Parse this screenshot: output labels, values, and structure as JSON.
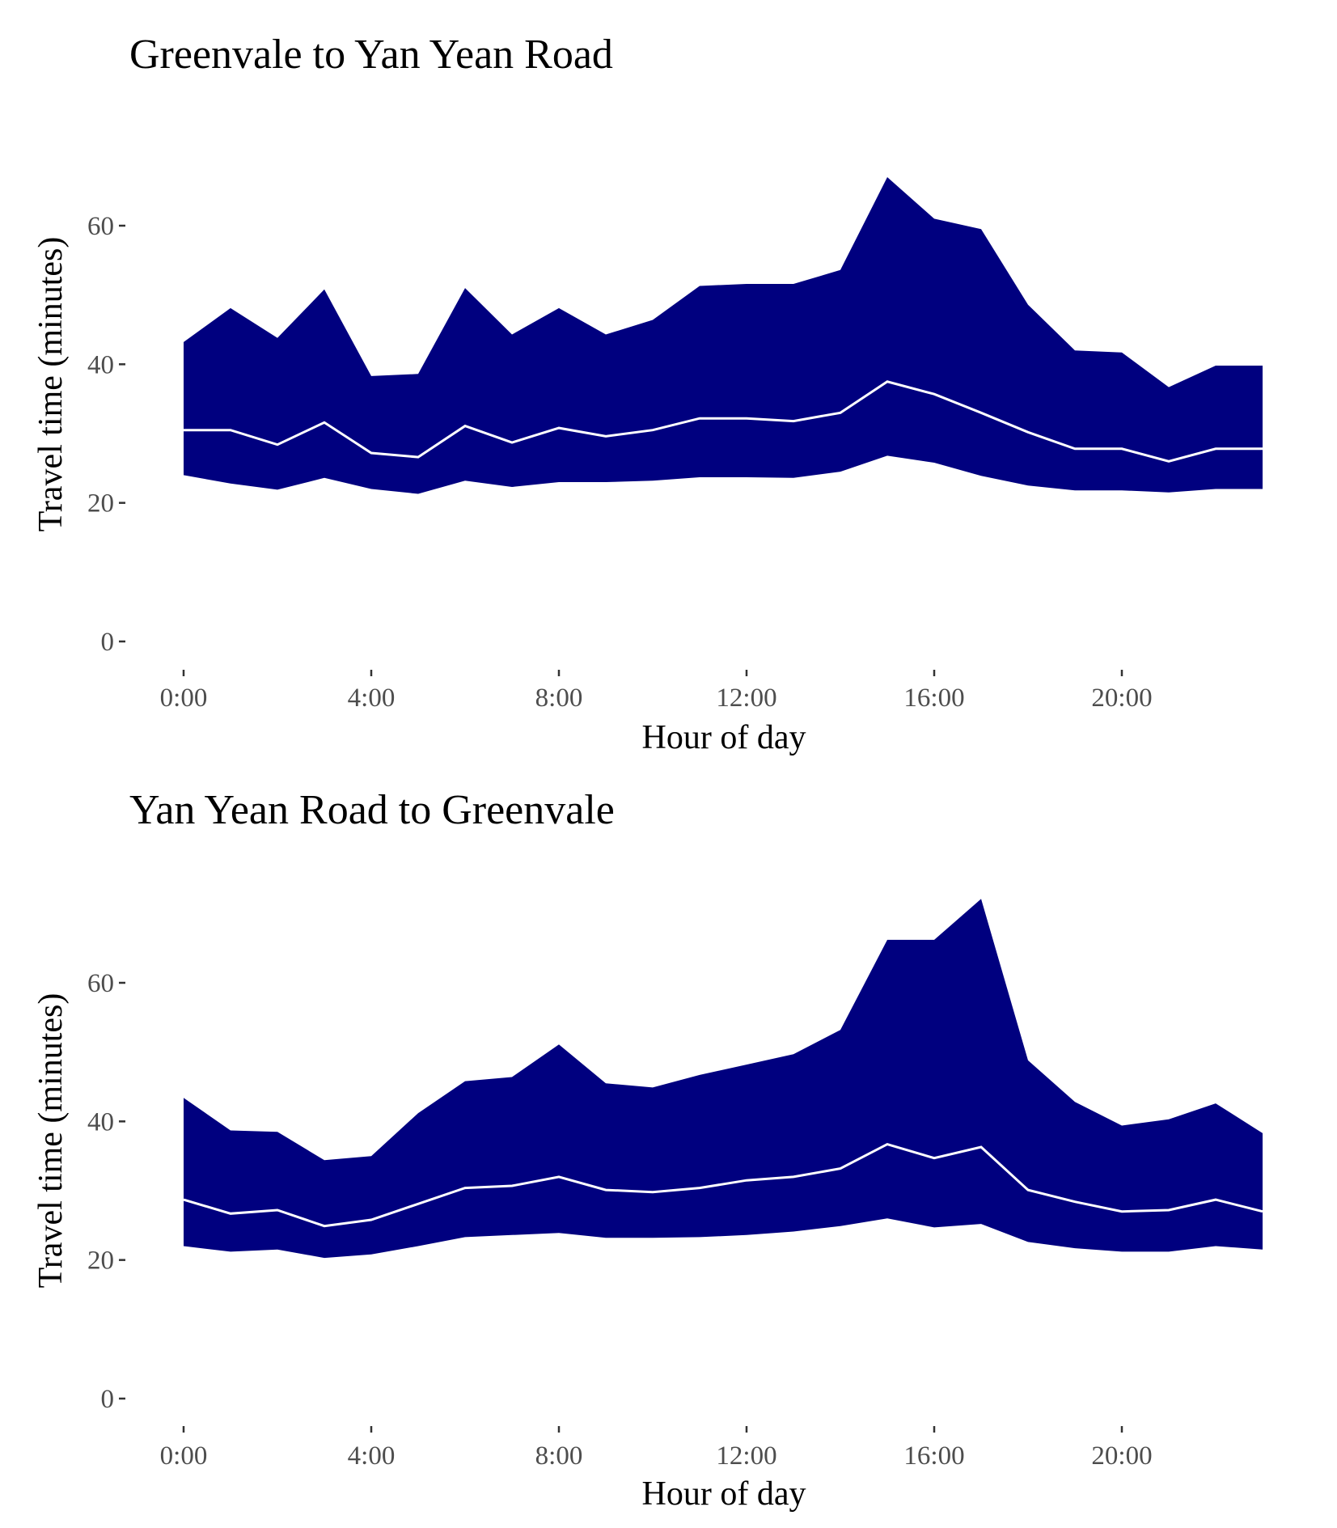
{
  "chart_data": [
    {
      "type": "area",
      "title": "Greenvale to Yan Yean Road",
      "xlabel": "Hour of day",
      "ylabel": "Travel time (minutes)",
      "xlim": [
        0,
        23
      ],
      "ylim": [
        0,
        70
      ],
      "x_ticks": [
        {
          "value": 0,
          "label": "0:00"
        },
        {
          "value": 4,
          "label": "4:00"
        },
        {
          "value": 8,
          "label": "8:00"
        },
        {
          "value": 12,
          "label": "12:00"
        },
        {
          "value": 16,
          "label": "16:00"
        },
        {
          "value": 20,
          "label": "20:00"
        }
      ],
      "y_ticks": [
        {
          "value": 0,
          "label": "0"
        },
        {
          "value": 20,
          "label": "20"
        },
        {
          "value": 40,
          "label": "40"
        },
        {
          "value": 60,
          "label": "60"
        }
      ],
      "grid": false,
      "x": [
        0,
        1,
        2,
        3,
        4,
        5,
        6,
        7,
        8,
        9,
        10,
        11,
        12,
        13,
        14,
        15,
        16,
        17,
        18,
        19,
        20,
        21,
        22,
        23
      ],
      "upper": [
        43.2,
        48.1,
        43.8,
        50.8,
        38.3,
        38.6,
        51.0,
        44.3,
        48.1,
        44.3,
        46.4,
        51.3,
        51.6,
        51.6,
        53.6,
        67.0,
        61.0,
        59.5,
        48.6,
        42.0,
        41.7,
        36.7,
        39.8,
        39.8
      ],
      "median": [
        30.5,
        30.5,
        28.4,
        31.6,
        27.2,
        26.6,
        31.1,
        28.7,
        30.8,
        29.6,
        30.5,
        32.2,
        32.2,
        31.8,
        33.0,
        37.5,
        35.7,
        33.0,
        30.2,
        27.8,
        27.8,
        26.0,
        27.8,
        27.8
      ],
      "lower": [
        24.0,
        22.8,
        21.9,
        23.6,
        22.0,
        21.3,
        23.2,
        22.3,
        23.0,
        23.0,
        23.2,
        23.7,
        23.7,
        23.6,
        24.5,
        26.8,
        25.8,
        23.9,
        22.5,
        21.8,
        21.8,
        21.5,
        22.0,
        22.0
      ],
      "band_color": "#00007f",
      "line_color": "#ffffff"
    },
    {
      "type": "area",
      "title": "Yan Yean Road to Greenvale",
      "xlabel": "Hour of day",
      "ylabel": "Travel time (minutes)",
      "xlim": [
        0,
        23
      ],
      "ylim": [
        0,
        72
      ],
      "x_ticks": [
        {
          "value": 0,
          "label": "0:00"
        },
        {
          "value": 4,
          "label": "4:00"
        },
        {
          "value": 8,
          "label": "8:00"
        },
        {
          "value": 12,
          "label": "12:00"
        },
        {
          "value": 16,
          "label": "16:00"
        },
        {
          "value": 20,
          "label": "20:00"
        }
      ],
      "y_ticks": [
        {
          "value": 0,
          "label": "0"
        },
        {
          "value": 20,
          "label": "20"
        },
        {
          "value": 40,
          "label": "40"
        },
        {
          "value": 60,
          "label": "60"
        }
      ],
      "grid": false,
      "x": [
        0,
        1,
        2,
        3,
        4,
        5,
        6,
        7,
        8,
        9,
        10,
        11,
        12,
        13,
        14,
        15,
        16,
        17,
        18,
        19,
        20,
        21,
        22,
        23
      ],
      "upper": [
        43.4,
        38.7,
        38.5,
        34.4,
        35.0,
        41.2,
        45.8,
        46.4,
        51.1,
        45.5,
        44.9,
        46.7,
        48.2,
        49.7,
        53.2,
        66.2,
        66.2,
        72.1,
        48.8,
        42.8,
        39.4,
        40.3,
        42.6,
        38.3
      ],
      "median": [
        28.7,
        26.7,
        27.2,
        24.9,
        25.8,
        28.1,
        30.4,
        30.7,
        32.0,
        30.1,
        29.8,
        30.4,
        31.5,
        32.0,
        33.2,
        36.7,
        34.7,
        36.3,
        30.1,
        28.4,
        27.0,
        27.2,
        28.7,
        27.0
      ],
      "lower": [
        22.0,
        21.2,
        21.5,
        20.3,
        20.8,
        22.0,
        23.3,
        23.6,
        23.9,
        23.2,
        23.2,
        23.3,
        23.6,
        24.1,
        24.9,
        26.0,
        24.7,
        25.2,
        22.6,
        21.7,
        21.2,
        21.2,
        22.0,
        21.5
      ],
      "band_color": "#00007f",
      "line_color": "#ffffff"
    }
  ]
}
